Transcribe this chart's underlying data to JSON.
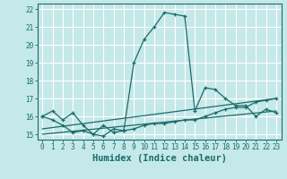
{
  "xlabel": "Humidex (Indice chaleur)",
  "bg_color": "#c5e8e8",
  "grid_color": "#ffffff",
  "line_color": "#1a6b6b",
  "xlim": [
    -0.5,
    23.5
  ],
  "ylim": [
    14.7,
    22.3
  ],
  "yticks": [
    15,
    16,
    17,
    18,
    19,
    20,
    21,
    22
  ],
  "xticks": [
    0,
    1,
    2,
    3,
    4,
    5,
    6,
    7,
    8,
    9,
    10,
    11,
    12,
    13,
    14,
    15,
    16,
    17,
    18,
    19,
    20,
    21,
    22,
    23
  ],
  "curve1_x": [
    0,
    1,
    2,
    3,
    4,
    5,
    6,
    7,
    8,
    9,
    10,
    11,
    12,
    13,
    14,
    15,
    16,
    17,
    18,
    19,
    20,
    21,
    22,
    23
  ],
  "curve1_y": [
    16.0,
    16.3,
    15.8,
    16.2,
    15.5,
    15.0,
    15.5,
    15.1,
    15.2,
    19.0,
    20.3,
    21.0,
    21.8,
    21.7,
    21.6,
    16.3,
    17.6,
    17.5,
    17.0,
    16.6,
    16.6,
    16.0,
    16.4,
    16.2
  ],
  "curve2_x": [
    0,
    1,
    2,
    3,
    4,
    5,
    6,
    7,
    8,
    9,
    10,
    11,
    12,
    13,
    14,
    15,
    16,
    17,
    18,
    19,
    20,
    21,
    22,
    23
  ],
  "curve2_y": [
    16.0,
    15.8,
    15.5,
    15.1,
    15.2,
    15.0,
    14.9,
    15.3,
    15.2,
    15.3,
    15.5,
    15.6,
    15.6,
    15.7,
    15.8,
    15.8,
    16.0,
    16.2,
    16.4,
    16.5,
    16.5,
    16.8,
    16.9,
    17.0
  ],
  "trend1_x": [
    0,
    23
  ],
  "trend1_y": [
    15.3,
    17.0
  ],
  "trend2_x": [
    0,
    23
  ],
  "trend2_y": [
    15.0,
    16.3
  ],
  "tick_fontsize": 5.5,
  "label_fontsize": 7.5
}
